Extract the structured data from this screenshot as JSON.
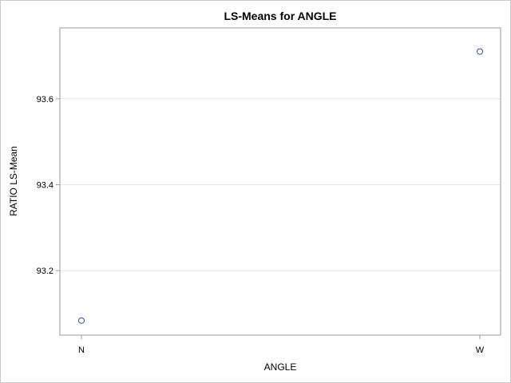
{
  "chart_data": {
    "type": "scatter",
    "title": "LS-Means for ANGLE",
    "xlabel": "ANGLE",
    "ylabel": "RATIO LS-Mean",
    "categories": [
      "N",
      "W"
    ],
    "values": [
      93.084,
      93.71
    ],
    "ylim": [
      93.05,
      93.765
    ],
    "yticks": [
      93.2,
      93.4,
      93.6
    ],
    "yticklabels": [
      "93.2",
      "93.4",
      "93.6"
    ],
    "grid": "horizontal",
    "marker": "open-circle",
    "marker_color": "#3b4a9c",
    "grid_color": "#e6e6e6",
    "frame_color": "#9a9a9a"
  }
}
